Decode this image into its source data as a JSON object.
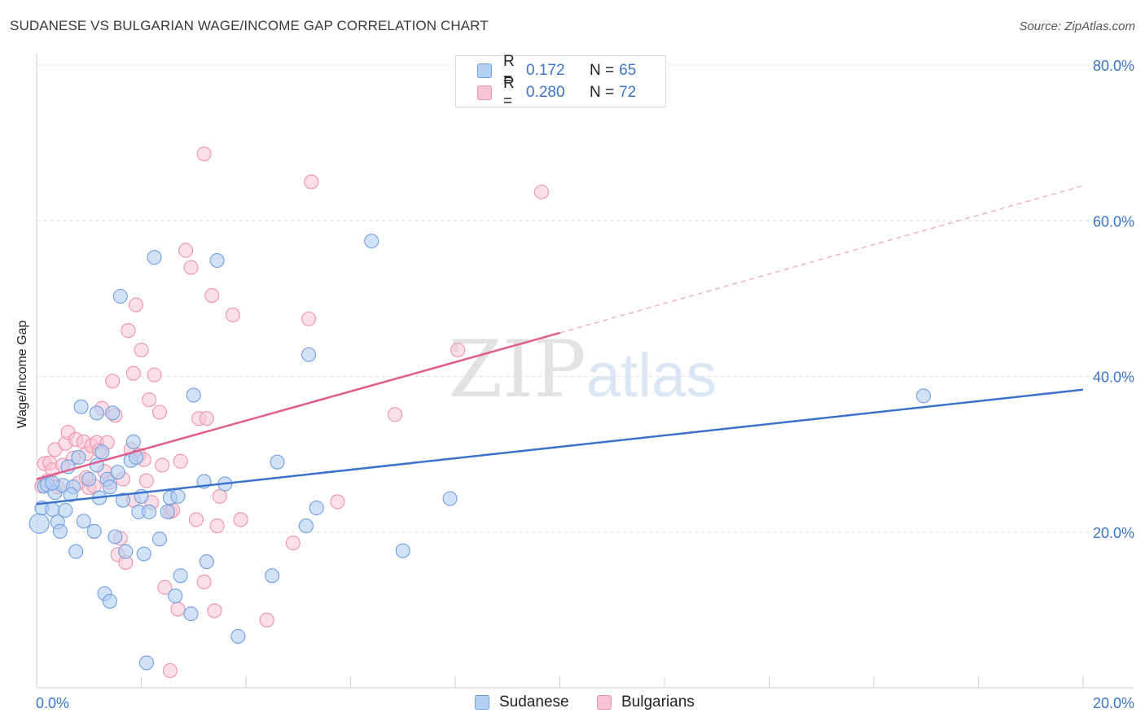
{
  "title": "SUDANESE VS BULGARIAN WAGE/INCOME GAP CORRELATION CHART",
  "source": "Source: ZipAtlas.com",
  "watermark": {
    "zip": "ZIP",
    "atlas": "atlas"
  },
  "legend": {
    "r_label": "R =",
    "n_label": "N =",
    "series": [
      {
        "name": "Sudanese",
        "r": "0.172",
        "n": "65",
        "fill": "#b3cff2",
        "stroke": "#6e9fe0"
      },
      {
        "name": "Bulgarians",
        "r": "0.280",
        "n": "72",
        "fill": "#f8c4d3",
        "stroke": "#ee91ad"
      }
    ]
  },
  "colors": {
    "blue_line": "#3a73cc",
    "pink_line": "#e05d8a",
    "axis_text": "#3b74c8",
    "grid": "#dddddd"
  },
  "chart_data": {
    "type": "scatter",
    "title": "SUDANESE VS BULGARIAN WAGE/INCOME GAP CORRELATION CHART",
    "xlabel": "",
    "ylabel": "Wage/Income Gap",
    "xlim": [
      0,
      20
    ],
    "ylim": [
      0,
      80
    ],
    "x_ticks": [
      "0.0%",
      "20.0%"
    ],
    "y_ticks": [
      {
        "value": 20,
        "label": "20.0%"
      },
      {
        "value": 40,
        "label": "40.0%"
      },
      {
        "value": 60,
        "label": "60.0%"
      },
      {
        "value": 80,
        "label": "80.0%"
      }
    ],
    "grid": true,
    "series": [
      {
        "name": "Sudanese",
        "trend": {
          "x": [
            0,
            20
          ],
          "y": [
            23.6,
            38.3
          ]
        },
        "points": [
          [
            0.05,
            21.1
          ],
          [
            0.1,
            23.1
          ],
          [
            0.15,
            25.9
          ],
          [
            0.2,
            26.1
          ],
          [
            0.3,
            22.9
          ],
          [
            0.35,
            25.1
          ],
          [
            0.4,
            21.3
          ],
          [
            0.45,
            20.1
          ],
          [
            0.5,
            26.0
          ],
          [
            0.55,
            22.8
          ],
          [
            0.6,
            28.4
          ],
          [
            0.7,
            25.8
          ],
          [
            0.75,
            17.5
          ],
          [
            0.8,
            29.6
          ],
          [
            0.85,
            36.1
          ],
          [
            0.9,
            21.4
          ],
          [
            1.0,
            26.8
          ],
          [
            1.1,
            20.1
          ],
          [
            1.15,
            35.3
          ],
          [
            1.2,
            24.4
          ],
          [
            1.25,
            30.3
          ],
          [
            1.3,
            12.1
          ],
          [
            1.35,
            26.8
          ],
          [
            1.4,
            11.1
          ],
          [
            1.4,
            25.8
          ],
          [
            1.45,
            35.3
          ],
          [
            1.5,
            19.4
          ],
          [
            1.55,
            27.7
          ],
          [
            1.6,
            50.3
          ],
          [
            1.65,
            24.1
          ],
          [
            1.7,
            17.5
          ],
          [
            1.8,
            29.2
          ],
          [
            1.85,
            31.6
          ],
          [
            1.9,
            29.6
          ],
          [
            1.95,
            22.6
          ],
          [
            2.0,
            24.6
          ],
          [
            2.05,
            17.2
          ],
          [
            2.1,
            3.2
          ],
          [
            2.15,
            22.6
          ],
          [
            2.25,
            55.3
          ],
          [
            2.35,
            19.1
          ],
          [
            2.5,
            22.6
          ],
          [
            2.55,
            24.4
          ],
          [
            2.65,
            11.8
          ],
          [
            2.7,
            24.6
          ],
          [
            2.75,
            14.4
          ],
          [
            2.95,
            9.5
          ],
          [
            3.0,
            37.6
          ],
          [
            3.2,
            26.5
          ],
          [
            3.25,
            16.2
          ],
          [
            3.45,
            54.9
          ],
          [
            3.6,
            26.2
          ],
          [
            3.85,
            6.6
          ],
          [
            4.5,
            14.4
          ],
          [
            4.6,
            29.0
          ],
          [
            5.15,
            20.8
          ],
          [
            5.2,
            42.8
          ],
          [
            5.35,
            23.1
          ],
          [
            6.4,
            57.4
          ],
          [
            7.0,
            17.6
          ],
          [
            7.9,
            24.3
          ],
          [
            16.95,
            37.5
          ],
          [
            0.3,
            26.3
          ],
          [
            0.65,
            24.8
          ],
          [
            1.15,
            28.6
          ]
        ]
      },
      {
        "name": "Bulgarians",
        "trend": {
          "x": [
            0,
            10
          ],
          "y": [
            26.8,
            45.6
          ],
          "dashed_x": [
            10,
            20
          ],
          "dashed_y": [
            45.6,
            64.5
          ]
        },
        "points": [
          [
            0.1,
            25.9
          ],
          [
            0.15,
            28.8
          ],
          [
            0.2,
            26.6
          ],
          [
            0.25,
            28.9
          ],
          [
            0.3,
            28.0
          ],
          [
            0.35,
            30.6
          ],
          [
            0.4,
            25.8
          ],
          [
            0.5,
            28.6
          ],
          [
            0.55,
            31.4
          ],
          [
            0.6,
            32.8
          ],
          [
            0.7,
            29.5
          ],
          [
            0.75,
            31.9
          ],
          [
            0.8,
            26.3
          ],
          [
            0.9,
            31.6
          ],
          [
            0.95,
            30.1
          ],
          [
            1.0,
            25.7
          ],
          [
            1.05,
            31.1
          ],
          [
            1.1,
            25.9
          ],
          [
            1.15,
            31.5
          ],
          [
            1.2,
            30.5
          ],
          [
            1.25,
            35.9
          ],
          [
            1.3,
            27.8
          ],
          [
            1.35,
            31.5
          ],
          [
            1.4,
            26.4
          ],
          [
            1.45,
            39.4
          ],
          [
            1.5,
            35.0
          ],
          [
            1.55,
            17.1
          ],
          [
            1.6,
            19.2
          ],
          [
            1.65,
            26.8
          ],
          [
            1.7,
            16.1
          ],
          [
            1.75,
            45.9
          ],
          [
            1.8,
            30.6
          ],
          [
            1.85,
            40.4
          ],
          [
            1.9,
            49.2
          ],
          [
            1.95,
            29.9
          ],
          [
            2.0,
            43.4
          ],
          [
            2.05,
            29.3
          ],
          [
            2.15,
            37.0
          ],
          [
            2.2,
            23.8
          ],
          [
            2.25,
            40.2
          ],
          [
            2.35,
            35.4
          ],
          [
            2.4,
            28.6
          ],
          [
            2.45,
            12.9
          ],
          [
            2.55,
            22.6
          ],
          [
            2.6,
            22.8
          ],
          [
            2.7,
            10.1
          ],
          [
            2.75,
            29.1
          ],
          [
            2.85,
            56.2
          ],
          [
            2.95,
            54.0
          ],
          [
            3.05,
            21.6
          ],
          [
            3.1,
            34.6
          ],
          [
            3.2,
            13.6
          ],
          [
            3.25,
            34.6
          ],
          [
            3.35,
            50.4
          ],
          [
            3.4,
            9.9
          ],
          [
            3.45,
            20.8
          ],
          [
            3.5,
            24.6
          ],
          [
            3.75,
            47.9
          ],
          [
            3.9,
            21.6
          ],
          [
            4.4,
            8.7
          ],
          [
            4.9,
            18.6
          ],
          [
            5.2,
            47.4
          ],
          [
            5.75,
            23.9
          ],
          [
            6.85,
            35.1
          ],
          [
            8.05,
            43.4
          ],
          [
            9.65,
            63.7
          ],
          [
            3.2,
            68.6
          ],
          [
            5.25,
            65.0
          ],
          [
            2.55,
            2.2
          ],
          [
            0.95,
            27.0
          ],
          [
            1.85,
            24.1
          ],
          [
            2.1,
            26.6
          ]
        ]
      }
    ]
  }
}
